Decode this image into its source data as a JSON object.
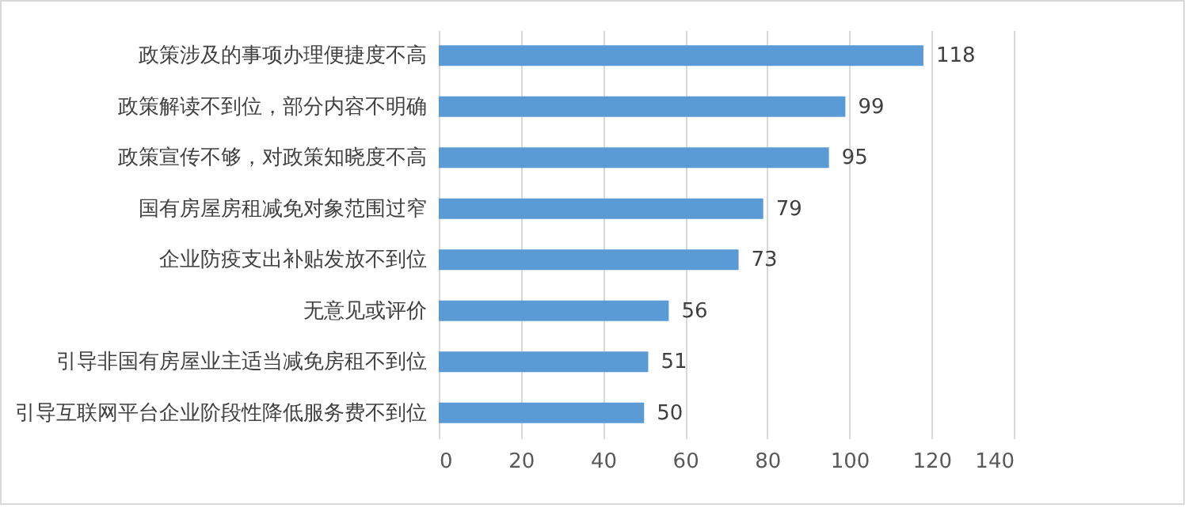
{
  "chart_data": {
    "type": "bar",
    "orientation": "horizontal",
    "categories": [
      "政策涉及的事项办理便捷度不高",
      "政策解读不到位，部分内容不明确",
      "政策宣传不够，对政策知晓度不高",
      "国有房屋房租减免对象范围过窄",
      "企业防疫支出补贴发放不到位",
      "无意见或评价",
      "引导非国有房屋业主适当减免房租不到位",
      "引导互联网平台企业阶段性降低服务费不到位"
    ],
    "values": [
      118,
      99,
      95,
      79,
      73,
      56,
      51,
      50
    ],
    "color": "#5b9bd5",
    "xlim": [
      0,
      140
    ],
    "xticks": [
      0,
      20,
      40,
      60,
      80,
      100,
      120,
      140
    ],
    "grid": "x",
    "data_labels": true
  }
}
